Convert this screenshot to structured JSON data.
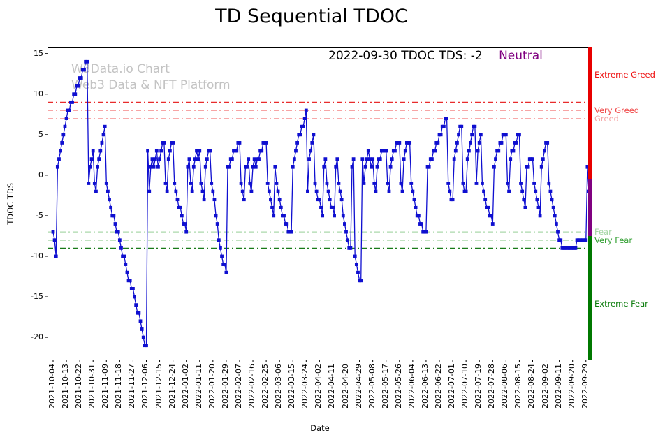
{
  "title": "TD Sequential TDOC",
  "annotation": {
    "date_text": "2022-09-30 TDOC TDS: -2",
    "sentiment": "Neutral",
    "sentiment_color": "#800080"
  },
  "watermark": {
    "line1": "W3Data.io Chart",
    "line2": "Web3 Data & NFT Platform"
  },
  "chart_data": {
    "type": "line",
    "title": "TD Sequential TDOC",
    "xlabel": "Date",
    "ylabel": "TDOC TDS",
    "ylim": [
      -22.75,
      15.75
    ],
    "yticks": [
      15,
      10,
      5,
      0,
      -5,
      -10,
      -15,
      -20
    ],
    "grid": false,
    "line_color": "#0f0fd0",
    "marker": "square",
    "x_start_date": "2021-10-04",
    "x_end_date": "2022-09-30",
    "tick_every_days": 9,
    "x_tick_labels": [
      "2021-10-04",
      "2021-10-13",
      "2021-10-22",
      "2021-10-31",
      "2021-11-09",
      "2021-11-18",
      "2021-11-27",
      "2021-12-06",
      "2021-12-15",
      "2021-12-24",
      "2022-01-02",
      "2022-01-11",
      "2022-01-20",
      "2022-01-29",
      "2022-02-07",
      "2022-02-16",
      "2022-02-25",
      "2022-03-06",
      "2022-03-15",
      "2022-03-24",
      "2022-04-02",
      "2022-04-11",
      "2022-04-20",
      "2022-04-29",
      "2022-05-08",
      "2022-05-17",
      "2022-05-26",
      "2022-06-04",
      "2022-06-13",
      "2022-06-22",
      "2022-07-01",
      "2022-07-10",
      "2022-07-19",
      "2022-07-28",
      "2022-08-06",
      "2022-08-15",
      "2022-08-24",
      "2022-09-02",
      "2022-09-11",
      "2022-09-20",
      "2022-09-29"
    ],
    "values": [
      -7,
      -8,
      -10,
      1,
      2,
      3,
      4,
      5,
      6,
      7,
      8,
      8,
      9,
      9,
      10,
      10,
      11,
      11,
      12,
      12,
      13,
      13,
      14,
      14,
      -1,
      1,
      2,
      3,
      -1,
      -2,
      1,
      2,
      3,
      4,
      5,
      6,
      -1,
      -2,
      -3,
      -4,
      -5,
      -5,
      -6,
      -7,
      -7,
      -8,
      -9,
      -10,
      -10,
      -11,
      -12,
      -13,
      -13,
      -14,
      -14,
      -15,
      -16,
      -17,
      -17,
      -18,
      -19,
      -20,
      -21,
      -21,
      3,
      -2,
      1,
      2,
      1,
      2,
      3,
      1,
      2,
      3,
      4,
      4,
      -1,
      -2,
      2,
      3,
      4,
      4,
      -1,
      -2,
      -3,
      -4,
      -4,
      -5,
      -6,
      -6,
      -7,
      1,
      2,
      -1,
      -2,
      1,
      2,
      3,
      2,
      3,
      -1,
      -2,
      -3,
      1,
      2,
      3,
      3,
      -1,
      -2,
      -3,
      -5,
      -6,
      -8,
      -9,
      -10,
      -11,
      -11,
      -12,
      1,
      1,
      2,
      2,
      3,
      3,
      3,
      4,
      4,
      -1,
      -2,
      -3,
      1,
      1,
      2,
      -1,
      -2,
      1,
      2,
      1,
      2,
      2,
      3,
      3,
      4,
      4,
      4,
      -1,
      -2,
      -3,
      -4,
      -5,
      1,
      -1,
      -2,
      -3,
      -4,
      -5,
      -5,
      -6,
      -6,
      -7,
      -7,
      -7,
      1,
      2,
      3,
      4,
      5,
      5,
      6,
      6,
      7,
      8,
      -2,
      2,
      3,
      4,
      5,
      -1,
      -2,
      -3,
      -3,
      -4,
      -5,
      1,
      2,
      -1,
      -2,
      -3,
      -4,
      -4,
      -5,
      1,
      2,
      -1,
      -2,
      -3,
      -5,
      -6,
      -7,
      -8,
      -9,
      -9,
      1,
      2,
      -10,
      -11,
      -12,
      -13,
      -13,
      2,
      -1,
      1,
      2,
      3,
      2,
      1,
      2,
      -1,
      -2,
      1,
      2,
      2,
      3,
      3,
      3,
      3,
      -1,
      -2,
      1,
      2,
      3,
      3,
      4,
      4,
      4,
      -1,
      -2,
      2,
      3,
      4,
      4,
      4,
      -1,
      -2,
      -3,
      -4,
      -5,
      -5,
      -6,
      -6,
      -7,
      -7,
      -7,
      1,
      1,
      2,
      2,
      3,
      3,
      4,
      4,
      5,
      5,
      6,
      6,
      7,
      7,
      -1,
      -2,
      -3,
      -3,
      2,
      3,
      4,
      5,
      6,
      6,
      -1,
      -2,
      -2,
      2,
      3,
      4,
      5,
      6,
      6,
      -1,
      3,
      4,
      5,
      -1,
      -2,
      -3,
      -4,
      -4,
      -5,
      -5,
      -6,
      1,
      2,
      3,
      3,
      4,
      4,
      5,
      5,
      5,
      -1,
      -2,
      2,
      3,
      3,
      4,
      4,
      5,
      5,
      -1,
      -2,
      -3,
      -4,
      1,
      1,
      2,
      2,
      2,
      -1,
      -2,
      -3,
      -4,
      -5,
      1,
      2,
      3,
      4,
      4,
      -1,
      -2,
      -3,
      -4,
      -5,
      -6,
      -7,
      -8,
      -8,
      -9,
      -9,
      -9,
      -9,
      -9,
      -9,
      -9,
      -9,
      -9,
      -9,
      -8,
      -8,
      -8,
      -8,
      -8,
      -8,
      -8,
      1,
      -2
    ],
    "thresholds": [
      {
        "value": 9,
        "color": "#e82c2c"
      },
      {
        "value": 8,
        "color": "#f26d6d"
      },
      {
        "value": 7,
        "color": "#f8aaaa"
      },
      {
        "value": -7,
        "color": "#abd9ab"
      },
      {
        "value": -8,
        "color": "#57b357"
      },
      {
        "value": -9,
        "color": "#187a18"
      }
    ],
    "zone_labels": [
      {
        "text": "Extreme Greed",
        "value": 12.4,
        "color": "#ee1111"
      },
      {
        "text": "Very Greed",
        "value": 8,
        "color": "#f04545"
      },
      {
        "text": "Greed",
        "value": 7,
        "color": "#f5a7a7"
      },
      {
        "text": "Fear",
        "value": -7,
        "color": "#a5d6a5"
      },
      {
        "text": "Very Fear",
        "value": -8,
        "color": "#2f9e2f"
      },
      {
        "text": "Extreme Fear",
        "value": -15.9,
        "color": "#0c7c0c"
      }
    ],
    "sentiment_bar": [
      {
        "from": 15.75,
        "to": -0.5,
        "color": "#e80000"
      },
      {
        "from": -0.5,
        "to": -7.5,
        "color": "#800080"
      },
      {
        "from": -7.5,
        "to": -22.75,
        "color": "#007800"
      }
    ]
  }
}
